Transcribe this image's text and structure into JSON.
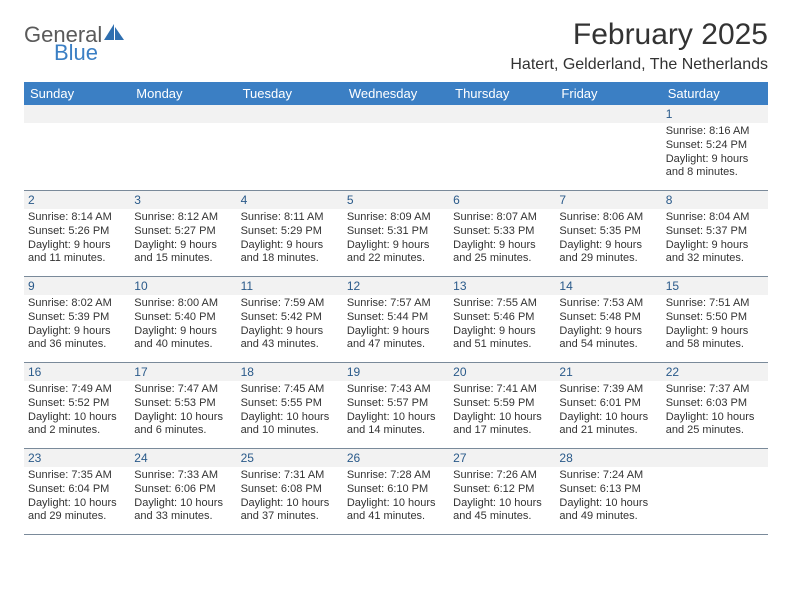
{
  "logo": {
    "line1": "General",
    "line2": "Blue",
    "icon_color": "#2f6fb0"
  },
  "title": "February 2025",
  "location": "Hatert, Gelderland, The Netherlands",
  "header_bg": "#3b7fc4",
  "header_text": "#ffffff",
  "daynum_bg": "#f2f2f2",
  "daynum_color": "#2a5a8a",
  "border_color": "#7a8a9a",
  "body_text_color": "#333333",
  "cell_fontsize": 11,
  "dow": [
    "Sunday",
    "Monday",
    "Tuesday",
    "Wednesday",
    "Thursday",
    "Friday",
    "Saturday"
  ],
  "weeks": [
    [
      null,
      null,
      null,
      null,
      null,
      null,
      {
        "n": "1",
        "sr": "Sunrise: 8:16 AM",
        "ss": "Sunset: 5:24 PM",
        "d1": "Daylight: 9 hours",
        "d2": "and 8 minutes."
      }
    ],
    [
      {
        "n": "2",
        "sr": "Sunrise: 8:14 AM",
        "ss": "Sunset: 5:26 PM",
        "d1": "Daylight: 9 hours",
        "d2": "and 11 minutes."
      },
      {
        "n": "3",
        "sr": "Sunrise: 8:12 AM",
        "ss": "Sunset: 5:27 PM",
        "d1": "Daylight: 9 hours",
        "d2": "and 15 minutes."
      },
      {
        "n": "4",
        "sr": "Sunrise: 8:11 AM",
        "ss": "Sunset: 5:29 PM",
        "d1": "Daylight: 9 hours",
        "d2": "and 18 minutes."
      },
      {
        "n": "5",
        "sr": "Sunrise: 8:09 AM",
        "ss": "Sunset: 5:31 PM",
        "d1": "Daylight: 9 hours",
        "d2": "and 22 minutes."
      },
      {
        "n": "6",
        "sr": "Sunrise: 8:07 AM",
        "ss": "Sunset: 5:33 PM",
        "d1": "Daylight: 9 hours",
        "d2": "and 25 minutes."
      },
      {
        "n": "7",
        "sr": "Sunrise: 8:06 AM",
        "ss": "Sunset: 5:35 PM",
        "d1": "Daylight: 9 hours",
        "d2": "and 29 minutes."
      },
      {
        "n": "8",
        "sr": "Sunrise: 8:04 AM",
        "ss": "Sunset: 5:37 PM",
        "d1": "Daylight: 9 hours",
        "d2": "and 32 minutes."
      }
    ],
    [
      {
        "n": "9",
        "sr": "Sunrise: 8:02 AM",
        "ss": "Sunset: 5:39 PM",
        "d1": "Daylight: 9 hours",
        "d2": "and 36 minutes."
      },
      {
        "n": "10",
        "sr": "Sunrise: 8:00 AM",
        "ss": "Sunset: 5:40 PM",
        "d1": "Daylight: 9 hours",
        "d2": "and 40 minutes."
      },
      {
        "n": "11",
        "sr": "Sunrise: 7:59 AM",
        "ss": "Sunset: 5:42 PM",
        "d1": "Daylight: 9 hours",
        "d2": "and 43 minutes."
      },
      {
        "n": "12",
        "sr": "Sunrise: 7:57 AM",
        "ss": "Sunset: 5:44 PM",
        "d1": "Daylight: 9 hours",
        "d2": "and 47 minutes."
      },
      {
        "n": "13",
        "sr": "Sunrise: 7:55 AM",
        "ss": "Sunset: 5:46 PM",
        "d1": "Daylight: 9 hours",
        "d2": "and 51 minutes."
      },
      {
        "n": "14",
        "sr": "Sunrise: 7:53 AM",
        "ss": "Sunset: 5:48 PM",
        "d1": "Daylight: 9 hours",
        "d2": "and 54 minutes."
      },
      {
        "n": "15",
        "sr": "Sunrise: 7:51 AM",
        "ss": "Sunset: 5:50 PM",
        "d1": "Daylight: 9 hours",
        "d2": "and 58 minutes."
      }
    ],
    [
      {
        "n": "16",
        "sr": "Sunrise: 7:49 AM",
        "ss": "Sunset: 5:52 PM",
        "d1": "Daylight: 10 hours",
        "d2": "and 2 minutes."
      },
      {
        "n": "17",
        "sr": "Sunrise: 7:47 AM",
        "ss": "Sunset: 5:53 PM",
        "d1": "Daylight: 10 hours",
        "d2": "and 6 minutes."
      },
      {
        "n": "18",
        "sr": "Sunrise: 7:45 AM",
        "ss": "Sunset: 5:55 PM",
        "d1": "Daylight: 10 hours",
        "d2": "and 10 minutes."
      },
      {
        "n": "19",
        "sr": "Sunrise: 7:43 AM",
        "ss": "Sunset: 5:57 PM",
        "d1": "Daylight: 10 hours",
        "d2": "and 14 minutes."
      },
      {
        "n": "20",
        "sr": "Sunrise: 7:41 AM",
        "ss": "Sunset: 5:59 PM",
        "d1": "Daylight: 10 hours",
        "d2": "and 17 minutes."
      },
      {
        "n": "21",
        "sr": "Sunrise: 7:39 AM",
        "ss": "Sunset: 6:01 PM",
        "d1": "Daylight: 10 hours",
        "d2": "and 21 minutes."
      },
      {
        "n": "22",
        "sr": "Sunrise: 7:37 AM",
        "ss": "Sunset: 6:03 PM",
        "d1": "Daylight: 10 hours",
        "d2": "and 25 minutes."
      }
    ],
    [
      {
        "n": "23",
        "sr": "Sunrise: 7:35 AM",
        "ss": "Sunset: 6:04 PM",
        "d1": "Daylight: 10 hours",
        "d2": "and 29 minutes."
      },
      {
        "n": "24",
        "sr": "Sunrise: 7:33 AM",
        "ss": "Sunset: 6:06 PM",
        "d1": "Daylight: 10 hours",
        "d2": "and 33 minutes."
      },
      {
        "n": "25",
        "sr": "Sunrise: 7:31 AM",
        "ss": "Sunset: 6:08 PM",
        "d1": "Daylight: 10 hours",
        "d2": "and 37 minutes."
      },
      {
        "n": "26",
        "sr": "Sunrise: 7:28 AM",
        "ss": "Sunset: 6:10 PM",
        "d1": "Daylight: 10 hours",
        "d2": "and 41 minutes."
      },
      {
        "n": "27",
        "sr": "Sunrise: 7:26 AM",
        "ss": "Sunset: 6:12 PM",
        "d1": "Daylight: 10 hours",
        "d2": "and 45 minutes."
      },
      {
        "n": "28",
        "sr": "Sunrise: 7:24 AM",
        "ss": "Sunset: 6:13 PM",
        "d1": "Daylight: 10 hours",
        "d2": "and 49 minutes."
      },
      null
    ]
  ]
}
